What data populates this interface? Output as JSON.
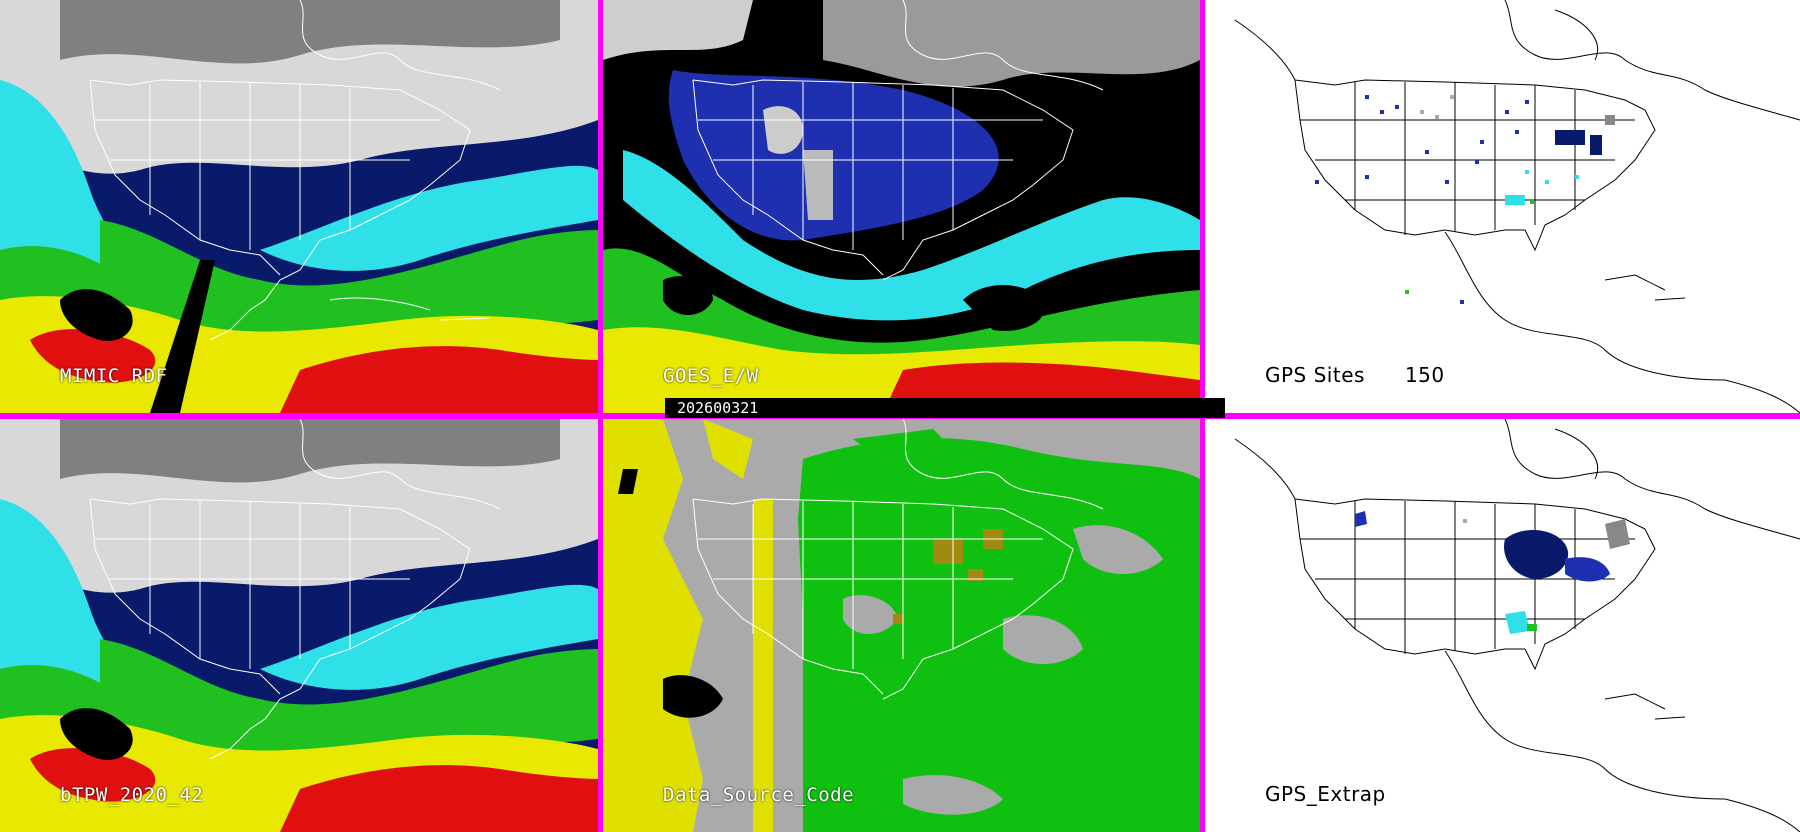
{
  "timestamp": "202600321",
  "panels": [
    {
      "id": "mimic-rdf",
      "label": "MIMIC RDF"
    },
    {
      "id": "goes-ew",
      "label": "GOES_E/W"
    },
    {
      "id": "gps-sites",
      "label": "GPS Sites",
      "count": "150"
    },
    {
      "id": "btpw",
      "label": "bTPW_2020_42"
    },
    {
      "id": "data-source-code",
      "label": "Data_Source_Code"
    },
    {
      "id": "gps-extrap",
      "label": "GPS_Extrap"
    }
  ],
  "colors": {
    "divider": "#ff00ff",
    "very_dry": "#0a1a6a",
    "dry": "#1e2fb0",
    "moist": "#30e0e8",
    "humid": "#20c020",
    "wet": "#e8e800",
    "very_wet": "#e01010",
    "saturated": "#000000",
    "snow_cloud": "#cccccc",
    "source_yellow": "#e0e000",
    "source_green": "#10c010",
    "source_olive": "#a08a10",
    "source_gray": "#aaaaaa"
  }
}
